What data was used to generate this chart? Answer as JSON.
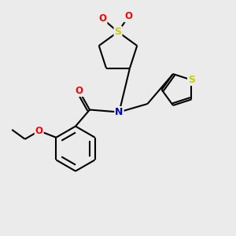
{
  "bg_color": "#ebebeb",
  "bond_color": "#000000",
  "bond_width": 1.5,
  "atom_colors": {
    "S_sulfonyl": "#cccc00",
    "S_thiophene": "#cccc00",
    "O": "#ff0000",
    "N": "#0000cc",
    "C": "#000000"
  },
  "font_size": 8.5,
  "figsize": [
    3.0,
    3.0
  ],
  "dpi": 100
}
